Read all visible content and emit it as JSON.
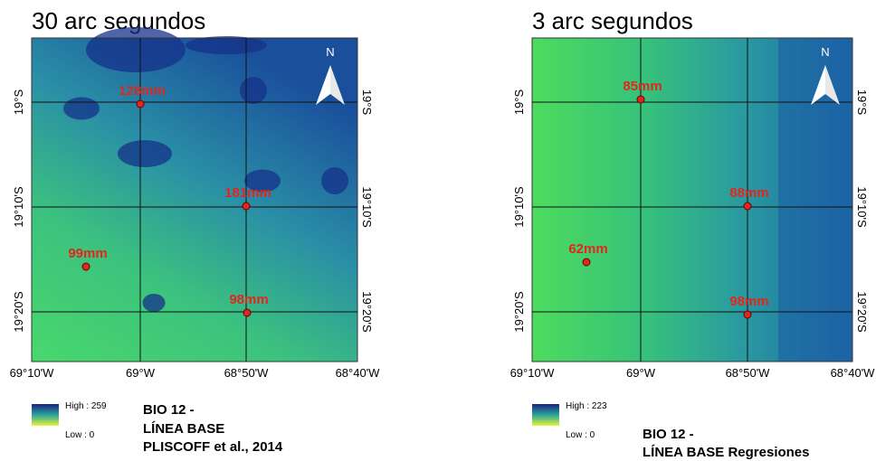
{
  "panels": [
    {
      "title": "30 arc segundos",
      "north": "N",
      "lat_labels": [
        "19°S",
        "19°10'S",
        "19°20'S"
      ],
      "lon_labels": [
        "69°10'W",
        "69°W",
        "68°50'W",
        "68°40'W"
      ],
      "points": [
        {
          "label": "128mm"
        },
        {
          "label": "181mm"
        },
        {
          "label": "99mm"
        },
        {
          "label": "98mm"
        }
      ],
      "legend": {
        "high": "High : 259",
        "low": "Low : 0"
      },
      "caption": [
        "BIO 12 -",
        "LÍNEA BASE",
        "PLISCOFF et al., 2014"
      ]
    },
    {
      "title": "3 arc segundos",
      "north": "N",
      "lat_labels": [
        "19°S",
        "19°10'S",
        "19°20'S"
      ],
      "lon_labels": [
        "69°10'W",
        "69°W",
        "68°50'W",
        "68°40'W"
      ],
      "points": [
        {
          "label": "85mm"
        },
        {
          "label": "88mm"
        },
        {
          "label": "62mm"
        },
        {
          "label": "98mm"
        }
      ],
      "legend": {
        "high": "High : 223",
        "low": "Low : 0"
      },
      "caption": [
        "BIO 12 -",
        "LÍNEA BASE Regresiones"
      ]
    }
  ]
}
